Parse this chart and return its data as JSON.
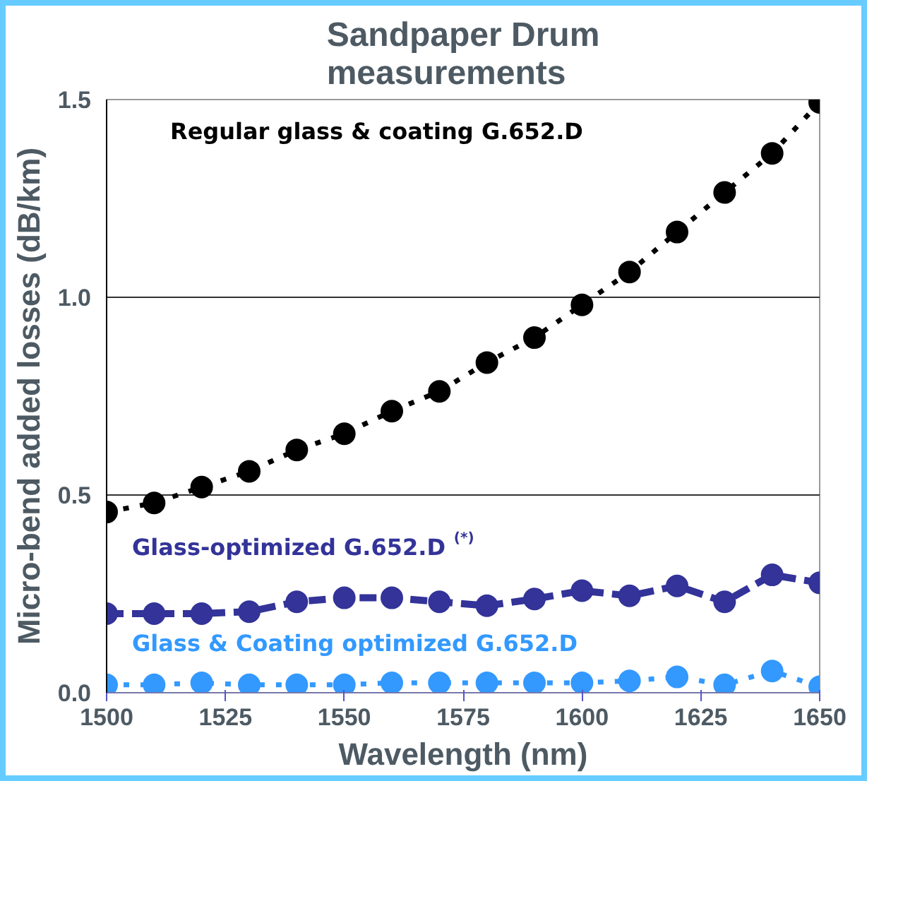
{
  "chart_data": {
    "type": "line",
    "title": "Sandpaper Drum\nmeasurements",
    "xlabel": "Wavelength (nm)",
    "ylabel": "Micro-bend added losses (dB/km)",
    "x": [
      1500,
      1510,
      1520,
      1530,
      1540,
      1550,
      1560,
      1570,
      1580,
      1590,
      1600,
      1610,
      1620,
      1630,
      1640,
      1650
    ],
    "series": [
      {
        "name": "Regular glass & coating G.652.D",
        "color": "#000000",
        "line_style": "dotted",
        "values": [
          0.457,
          0.48,
          0.52,
          0.56,
          0.614,
          0.655,
          0.712,
          0.762,
          0.835,
          0.898,
          0.981,
          1.064,
          1.165,
          1.265,
          1.364,
          1.493
        ]
      },
      {
        "name": "Glass-optimized G.652.D $^{(*)}$",
        "color": "#333399",
        "line_style": "dashed",
        "values": [
          0.2,
          0.2,
          0.2,
          0.205,
          0.23,
          0.24,
          0.24,
          0.23,
          0.22,
          0.237,
          0.258,
          0.245,
          0.27,
          0.23,
          0.298,
          0.278
        ]
      },
      {
        "name": "Glass & Coating optimized G.652.D",
        "color": "#3399ff",
        "line_style": "dotted",
        "values": [
          0.02,
          0.02,
          0.025,
          0.02,
          0.02,
          0.02,
          0.025,
          0.025,
          0.025,
          0.025,
          0.025,
          0.03,
          0.04,
          0.02,
          0.055,
          0.015
        ]
      }
    ],
    "xlim": [
      1500,
      1650
    ],
    "xticks": [
      1500,
      1525,
      1550,
      1575,
      1600,
      1625,
      1650
    ],
    "ylim": [
      0,
      1.5
    ],
    "yticks": [
      {
        "value": 0,
        "label": "0.0"
      },
      {
        "value": 0.5,
        "label": "0.5"
      },
      {
        "value": 1.0,
        "label": "1.0"
      },
      {
        "value": 1.5,
        "label": "1.5"
      }
    ],
    "grid": "y",
    "marker": "circle"
  }
}
